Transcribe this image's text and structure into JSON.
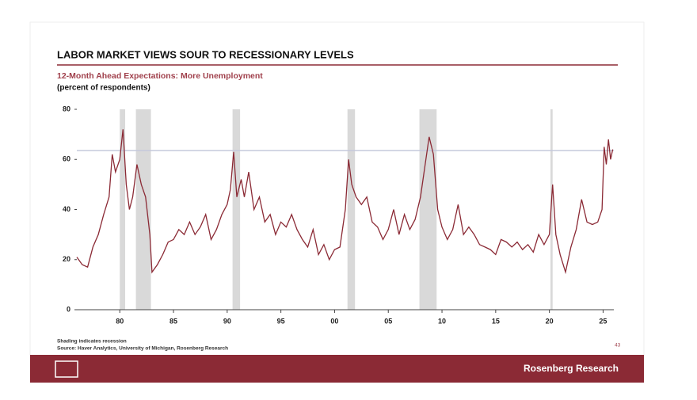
{
  "chart_data": {
    "type": "line",
    "title": "LABOR MARKET VIEWS SOUR TO RECESSIONARY LEVELS",
    "subtitle": "12-Month Ahead Expectations: More Unemployment",
    "unit_label": "(percent of respondents)",
    "note": "Shading indicates recession",
    "source": "Source: Haver Analytics, University of Michigan, Rosenberg Research",
    "page_number": "43",
    "brand": "Rosenberg Research",
    "xlim": [
      1976,
      2026
    ],
    "ylim": [
      0,
      80
    ],
    "yticks": [
      0,
      20,
      40,
      60,
      80
    ],
    "xticks": [
      {
        "value": 1980,
        "label": "80"
      },
      {
        "value": 1985,
        "label": "85"
      },
      {
        "value": 1990,
        "label": "90"
      },
      {
        "value": 1995,
        "label": "95"
      },
      {
        "value": 2000,
        "label": "00"
      },
      {
        "value": 2005,
        "label": "05"
      },
      {
        "value": 2010,
        "label": "10"
      },
      {
        "value": 2015,
        "label": "15"
      },
      {
        "value": 2020,
        "label": "20"
      },
      {
        "value": 2025,
        "label": "25"
      }
    ],
    "reference_line": 63.5,
    "reference_color": "#c5c9dc",
    "recession_color": "#d9d9d9",
    "recessions": [
      [
        1980.0,
        1980.5
      ],
      [
        1981.5,
        1982.9
      ],
      [
        1990.5,
        1991.2
      ],
      [
        2001.2,
        2001.9
      ],
      [
        2007.9,
        2009.5
      ],
      [
        2020.1,
        2020.3
      ]
    ],
    "color": "#8b2a35",
    "x": [
      1976.0,
      1976.5,
      1977.0,
      1977.5,
      1978.0,
      1978.5,
      1979.0,
      1979.3,
      1979.6,
      1980.0,
      1980.3,
      1980.6,
      1980.9,
      1981.2,
      1981.6,
      1982.0,
      1982.4,
      1982.8,
      1983.0,
      1983.5,
      1984.0,
      1984.5,
      1985.0,
      1985.5,
      1986.0,
      1986.5,
      1987.0,
      1987.5,
      1988.0,
      1988.5,
      1989.0,
      1989.5,
      1990.0,
      1990.3,
      1990.6,
      1990.9,
      1991.3,
      1991.6,
      1992.0,
      1992.5,
      1993.0,
      1993.5,
      1994.0,
      1994.5,
      1995.0,
      1995.5,
      1996.0,
      1996.5,
      1997.0,
      1997.5,
      1998.0,
      1998.5,
      1999.0,
      1999.5,
      2000.0,
      2000.5,
      2001.0,
      2001.3,
      2001.6,
      2002.0,
      2002.5,
      2003.0,
      2003.5,
      2004.0,
      2004.5,
      2005.0,
      2005.5,
      2006.0,
      2006.5,
      2007.0,
      2007.5,
      2008.0,
      2008.5,
      2008.8,
      2009.2,
      2009.6,
      2010.0,
      2010.5,
      2011.0,
      2011.5,
      2012.0,
      2012.5,
      2013.0,
      2013.5,
      2014.0,
      2014.5,
      2015.0,
      2015.5,
      2016.0,
      2016.5,
      2017.0,
      2017.5,
      2018.0,
      2018.5,
      2019.0,
      2019.5,
      2020.0,
      2020.3,
      2020.6,
      2021.0,
      2021.5,
      2022.0,
      2022.5,
      2023.0,
      2023.5,
      2024.0,
      2024.5,
      2024.9,
      2025.1,
      2025.3,
      2025.5,
      2025.7,
      2025.9
    ],
    "values": [
      21,
      18,
      17,
      25,
      30,
      38,
      45,
      62,
      55,
      60,
      72,
      50,
      40,
      45,
      58,
      50,
      45,
      30,
      15,
      18,
      22,
      27,
      28,
      32,
      30,
      35,
      30,
      33,
      38,
      28,
      32,
      38,
      42,
      48,
      63,
      45,
      52,
      45,
      55,
      40,
      45,
      35,
      38,
      30,
      35,
      33,
      38,
      32,
      28,
      25,
      32,
      22,
      26,
      20,
      24,
      25,
      40,
      60,
      50,
      45,
      42,
      45,
      35,
      33,
      28,
      32,
      40,
      30,
      38,
      32,
      36,
      45,
      60,
      69,
      62,
      40,
      33,
      28,
      32,
      42,
      30,
      33,
      30,
      26,
      25,
      24,
      22,
      28,
      27,
      25,
      27,
      24,
      26,
      23,
      30,
      26,
      30,
      50,
      30,
      22,
      15,
      25,
      32,
      44,
      35,
      34,
      35,
      40,
      65,
      58,
      68,
      60,
      64
    ]
  }
}
